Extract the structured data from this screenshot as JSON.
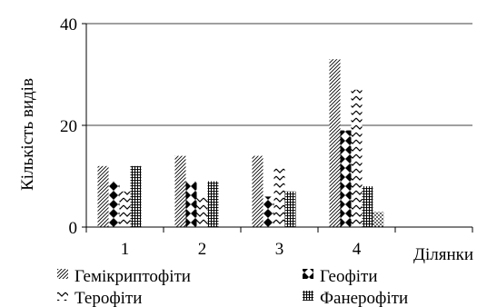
{
  "chart_data": {
    "type": "bar",
    "categories": [
      "1",
      "2",
      "3",
      "4"
    ],
    "xlabel": "Ділянки",
    "ylabel": "Кількість видів",
    "ylim": [
      0,
      40
    ],
    "yticks": [
      0,
      20,
      40
    ],
    "grid": true,
    "legend_position": "bottom",
    "series": [
      {
        "name": "Гемікриптофіти",
        "values": [
          12,
          14,
          14,
          33
        ],
        "pattern": "diagonal-dense"
      },
      {
        "name": "Геофіти",
        "values": [
          9,
          9,
          6,
          19
        ],
        "pattern": "diamonds"
      },
      {
        "name": "Терофіти",
        "values": [
          7,
          6,
          12,
          27
        ],
        "pattern": "zigzag"
      },
      {
        "name": "Фанерофіти",
        "values": [
          12,
          9,
          7,
          8
        ],
        "pattern": "brick"
      },
      {
        "name": "",
        "values": [
          0,
          0,
          0,
          3
        ],
        "pattern": "dots"
      }
    ]
  }
}
